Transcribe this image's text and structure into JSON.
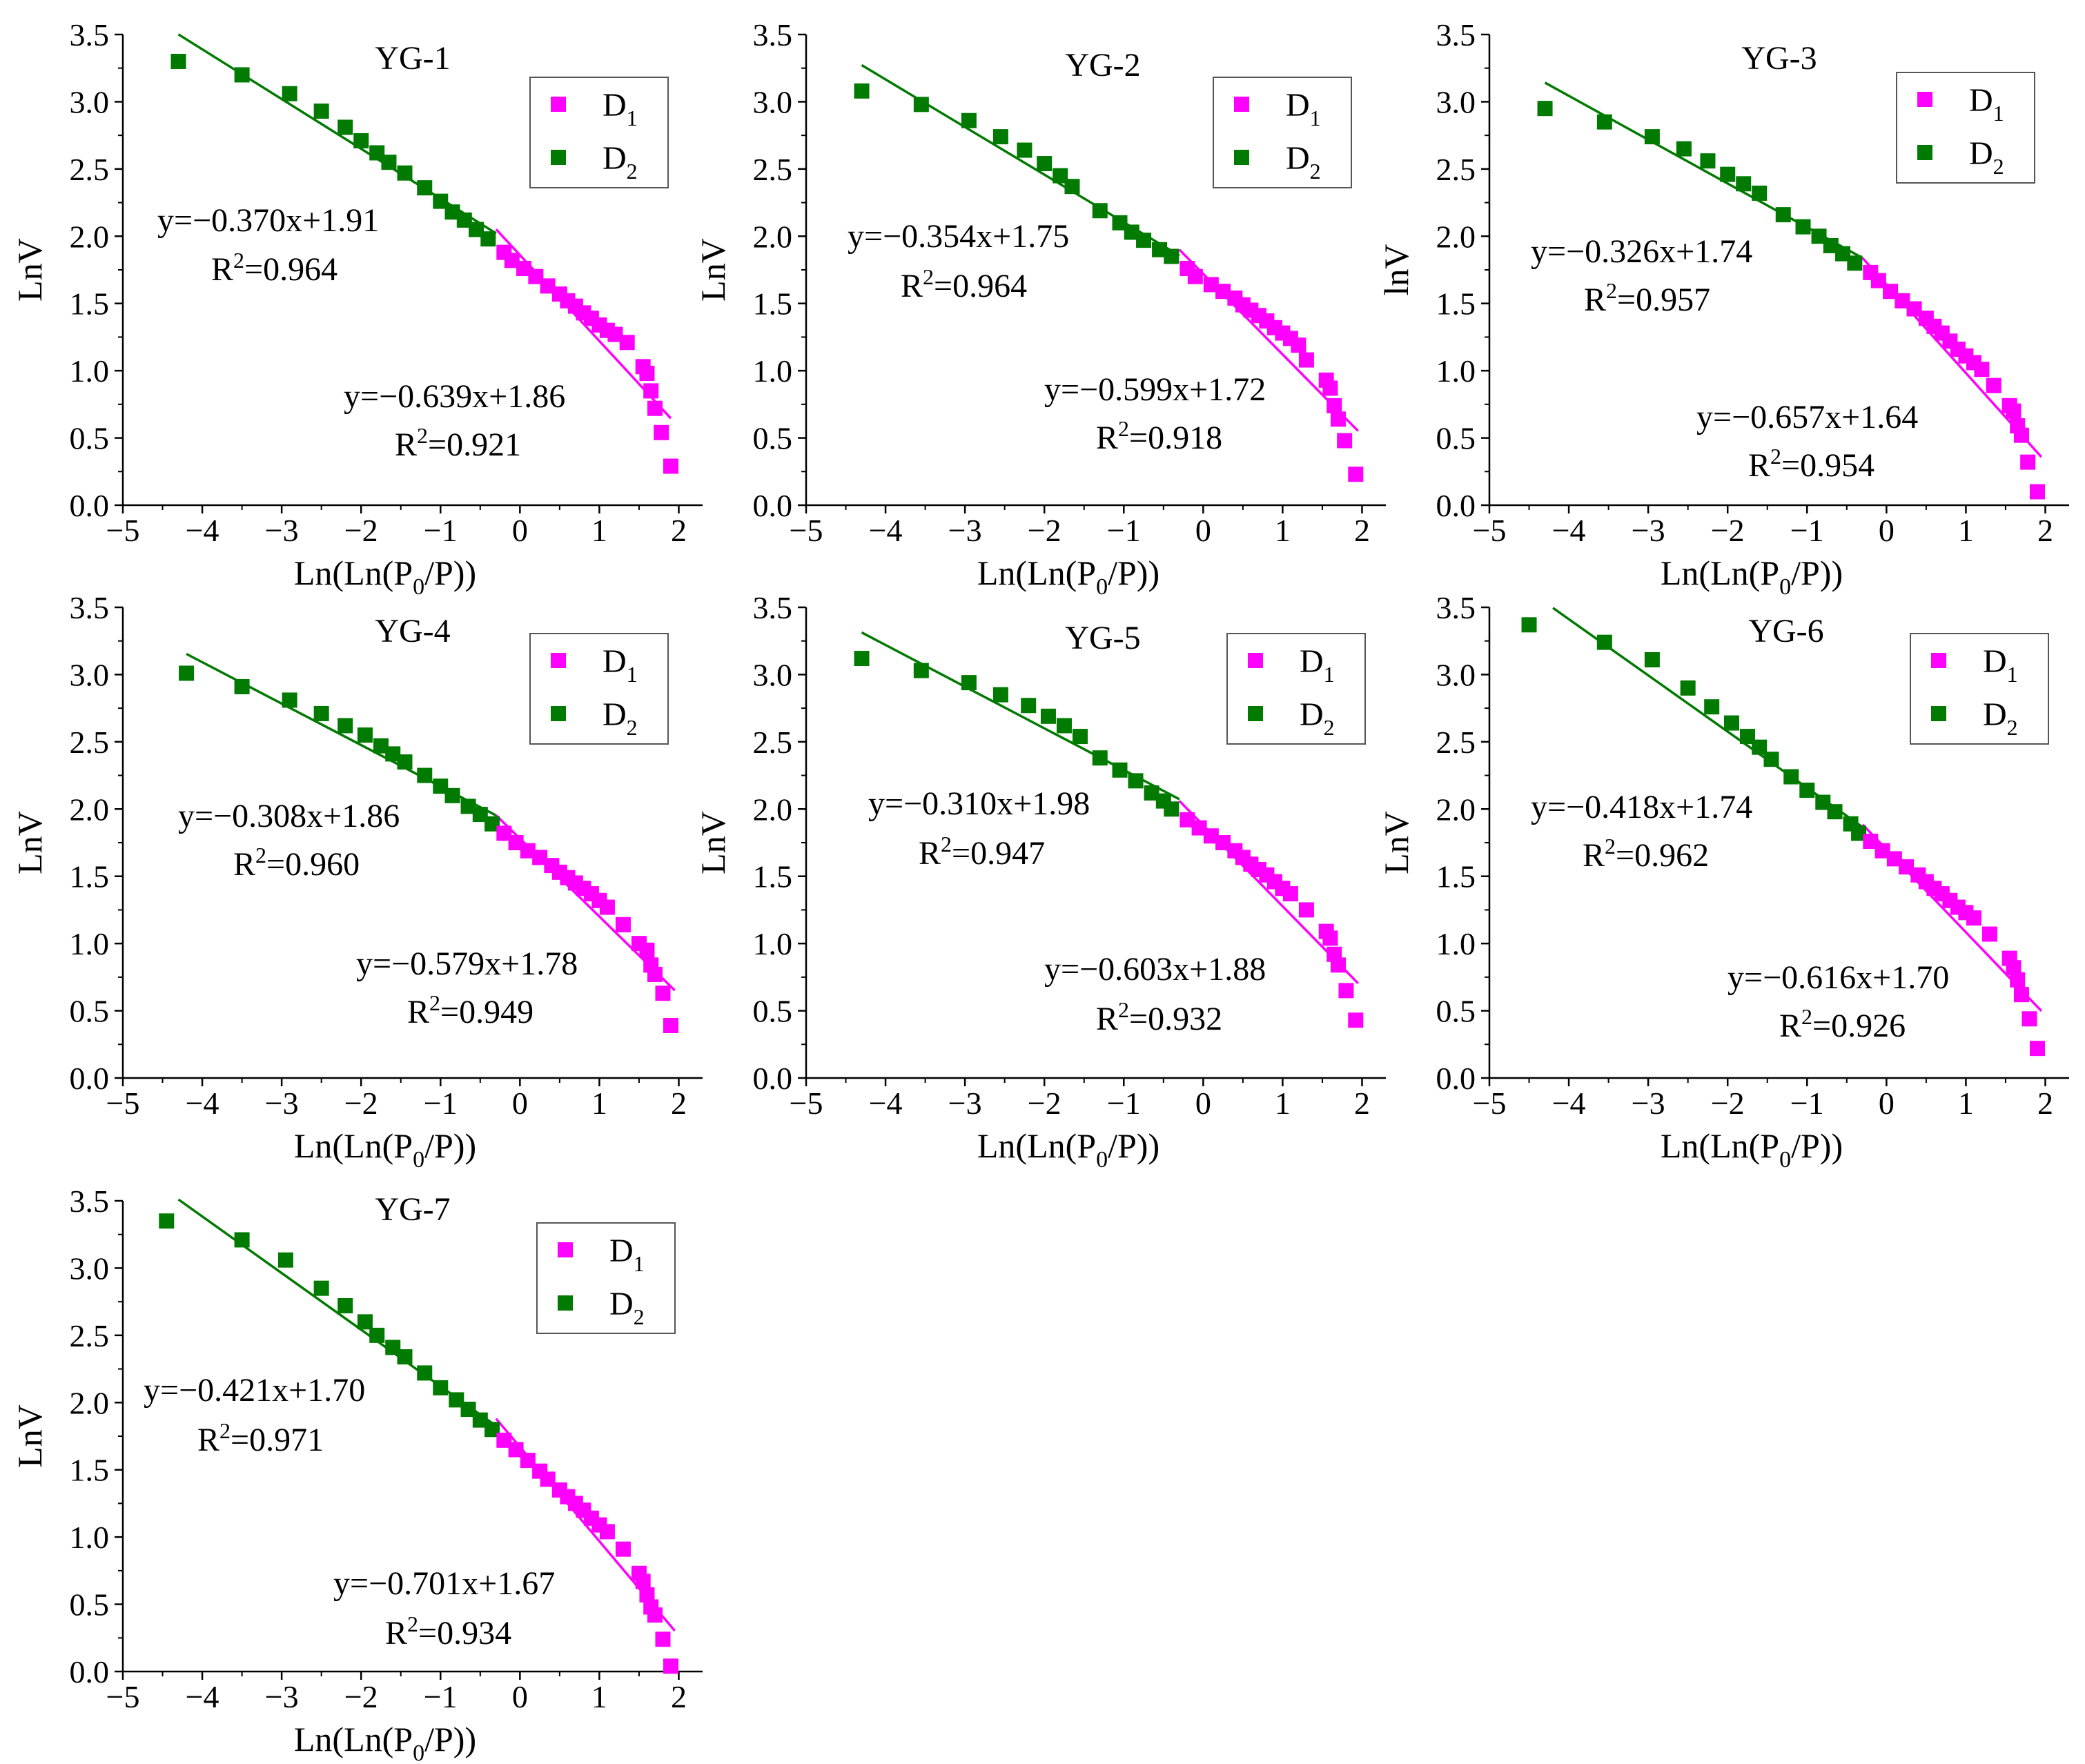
{
  "figure": {
    "description_free": true,
    "colors": {
      "D1": "#ff00ff",
      "D2": "#007a00",
      "axis": "#000000",
      "legend_border": "#555555"
    },
    "common_axes": {
      "xlabel_main": "Ln(Ln(P",
      "xlabel_sub": "0",
      "xlabel_tail": "/P))",
      "xlim": [
        -5,
        2.3
      ],
      "ylim": [
        0,
        3.5
      ],
      "xticks": [
        "−5",
        "−4",
        "−3",
        "−2",
        "−1",
        "0",
        "1",
        "2"
      ],
      "xtick_values": [
        -5,
        -4,
        -3,
        -2,
        -1,
        0,
        1,
        2
      ],
      "yticks": [
        "0.0",
        "0.5",
        "1.0",
        "1.5",
        "2.0",
        "2.5",
        "3.0",
        "3.5"
      ],
      "ytick_values": [
        0,
        0.5,
        1.0,
        1.5,
        2.0,
        2.5,
        3.0,
        3.5
      ]
    },
    "legend_labels": {
      "D1_main": "D",
      "D1_sub": "1",
      "D2_main": "D",
      "D2_sub": "2"
    }
  },
  "chart_data": [
    {
      "type": "scatter",
      "title": "YG-1",
      "ylabel": "LnV",
      "d2": {
        "slope": -0.37,
        "intercept": 1.91,
        "x_range": [
          -4.3,
          -0.3
        ],
        "eq": "y=−0.370x+1.91",
        "r2": "=0.964",
        "points": [
          [
            -4.3,
            3.3
          ],
          [
            -3.5,
            3.2
          ],
          [
            -2.9,
            3.06
          ],
          [
            -2.5,
            2.93
          ],
          [
            -2.2,
            2.81
          ],
          [
            -2.0,
            2.71
          ],
          [
            -1.8,
            2.62
          ],
          [
            -1.65,
            2.55
          ],
          [
            -1.45,
            2.47
          ],
          [
            -1.2,
            2.36
          ],
          [
            -1.0,
            2.26
          ],
          [
            -0.85,
            2.18
          ],
          [
            -0.7,
            2.12
          ],
          [
            -0.55,
            2.05
          ],
          [
            -0.4,
            1.98
          ]
        ]
      },
      "d1": {
        "slope": -0.639,
        "intercept": 1.86,
        "x_range": [
          -0.3,
          1.9
        ],
        "eq": "y=−0.639x+1.86",
        "r2": "=0.921",
        "points": [
          [
            -0.2,
            1.88
          ],
          [
            -0.1,
            1.82
          ],
          [
            0.05,
            1.76
          ],
          [
            0.2,
            1.7
          ],
          [
            0.35,
            1.63
          ],
          [
            0.5,
            1.57
          ],
          [
            0.6,
            1.52
          ],
          [
            0.7,
            1.48
          ],
          [
            0.8,
            1.43
          ],
          [
            0.9,
            1.39
          ],
          [
            1.0,
            1.34
          ],
          [
            1.1,
            1.3
          ],
          [
            1.2,
            1.27
          ],
          [
            1.35,
            1.21
          ],
          [
            1.55,
            1.03
          ],
          [
            1.6,
            0.98
          ],
          [
            1.65,
            0.85
          ],
          [
            1.7,
            0.72
          ],
          [
            1.78,
            0.54
          ],
          [
            1.9,
            0.29
          ]
        ]
      }
    },
    {
      "type": "scatter",
      "title": "YG-2",
      "ylabel": "LnV",
      "d2": {
        "slope": -0.354,
        "intercept": 1.75,
        "x_range": [
          -4.3,
          -0.3
        ],
        "eq": "y=−0.354x+1.75",
        "r2": "=0.964",
        "points": [
          [
            -4.3,
            3.08
          ],
          [
            -3.55,
            2.98
          ],
          [
            -2.95,
            2.86
          ],
          [
            -2.55,
            2.74
          ],
          [
            -2.25,
            2.64
          ],
          [
            -2.0,
            2.54
          ],
          [
            -1.8,
            2.45
          ],
          [
            -1.65,
            2.37
          ],
          [
            -1.3,
            2.19
          ],
          [
            -1.05,
            2.1
          ],
          [
            -0.9,
            2.03
          ],
          [
            -0.75,
            1.97
          ],
          [
            -0.55,
            1.9
          ],
          [
            -0.4,
            1.85
          ]
        ]
      },
      "d1": {
        "slope": -0.599,
        "intercept": 1.72,
        "x_range": [
          -0.3,
          1.95
        ],
        "eq": "y=−0.599x+1.72",
        "r2": "=0.918",
        "points": [
          [
            -0.2,
            1.76
          ],
          [
            -0.1,
            1.7
          ],
          [
            0.1,
            1.64
          ],
          [
            0.25,
            1.59
          ],
          [
            0.4,
            1.54
          ],
          [
            0.5,
            1.49
          ],
          [
            0.6,
            1.45
          ],
          [
            0.7,
            1.41
          ],
          [
            0.8,
            1.37
          ],
          [
            0.9,
            1.32
          ],
          [
            1.0,
            1.28
          ],
          [
            1.1,
            1.24
          ],
          [
            1.2,
            1.19
          ],
          [
            1.3,
            1.08
          ],
          [
            1.55,
            0.93
          ],
          [
            1.6,
            0.87
          ],
          [
            1.65,
            0.74
          ],
          [
            1.7,
            0.64
          ],
          [
            1.78,
            0.48
          ],
          [
            1.92,
            0.23
          ]
        ]
      }
    },
    {
      "type": "scatter",
      "title": "YG-3",
      "ylabel": "lnV",
      "d2": {
        "slope": -0.326,
        "intercept": 1.74,
        "x_range": [
          -4.3,
          -0.3
        ],
        "eq": "y=−0.326x+1.74",
        "r2": "=0.957",
        "points": [
          [
            -4.3,
            2.95
          ],
          [
            -3.55,
            2.85
          ],
          [
            -2.95,
            2.74
          ],
          [
            -2.55,
            2.65
          ],
          [
            -2.25,
            2.56
          ],
          [
            -2.0,
            2.46
          ],
          [
            -1.8,
            2.39
          ],
          [
            -1.6,
            2.32
          ],
          [
            -1.3,
            2.16
          ],
          [
            -1.05,
            2.07
          ],
          [
            -0.85,
            2.0
          ],
          [
            -0.7,
            1.93
          ],
          [
            -0.55,
            1.87
          ],
          [
            -0.4,
            1.8
          ]
        ]
      },
      "d1": {
        "slope": -0.657,
        "intercept": 1.64,
        "x_range": [
          -0.3,
          1.95
        ],
        "eq": "y=−0.657x+1.64",
        "r2": "=0.954",
        "points": [
          [
            -0.2,
            1.73
          ],
          [
            -0.1,
            1.67
          ],
          [
            0.05,
            1.59
          ],
          [
            0.2,
            1.52
          ],
          [
            0.35,
            1.46
          ],
          [
            0.5,
            1.39
          ],
          [
            0.6,
            1.33
          ],
          [
            0.7,
            1.28
          ],
          [
            0.8,
            1.22
          ],
          [
            0.9,
            1.16
          ],
          [
            1.0,
            1.11
          ],
          [
            1.1,
            1.06
          ],
          [
            1.2,
            1.01
          ],
          [
            1.35,
            0.89
          ],
          [
            1.55,
            0.74
          ],
          [
            1.6,
            0.7
          ],
          [
            1.65,
            0.59
          ],
          [
            1.7,
            0.52
          ],
          [
            1.78,
            0.32
          ],
          [
            1.9,
            0.1
          ]
        ]
      }
    },
    {
      "type": "scatter",
      "title": "YG-4",
      "ylabel": "LnV",
      "d2": {
        "slope": -0.308,
        "intercept": 1.86,
        "x_range": [
          -4.2,
          -0.3
        ],
        "eq": "y=−0.308x+1.86",
        "r2": "=0.960",
        "points": [
          [
            -4.2,
            3.01
          ],
          [
            -3.5,
            2.91
          ],
          [
            -2.9,
            2.81
          ],
          [
            -2.5,
            2.71
          ],
          [
            -2.2,
            2.62
          ],
          [
            -1.95,
            2.55
          ],
          [
            -1.75,
            2.47
          ],
          [
            -1.6,
            2.41
          ],
          [
            -1.45,
            2.35
          ],
          [
            -1.2,
            2.25
          ],
          [
            -1.0,
            2.17
          ],
          [
            -0.85,
            2.1
          ],
          [
            -0.65,
            2.02
          ],
          [
            -0.5,
            1.96
          ],
          [
            -0.35,
            1.89
          ]
        ]
      },
      "d1": {
        "slope": -0.579,
        "intercept": 1.78,
        "x_range": [
          -0.3,
          1.95
        ],
        "eq": "y=−0.579x+1.78",
        "r2": "=0.949",
        "points": [
          [
            -0.2,
            1.82
          ],
          [
            -0.05,
            1.75
          ],
          [
            0.1,
            1.69
          ],
          [
            0.25,
            1.64
          ],
          [
            0.4,
            1.58
          ],
          [
            0.5,
            1.53
          ],
          [
            0.6,
            1.49
          ],
          [
            0.7,
            1.45
          ],
          [
            0.8,
            1.41
          ],
          [
            0.9,
            1.37
          ],
          [
            1.0,
            1.32
          ],
          [
            1.1,
            1.27
          ],
          [
            1.3,
            1.14
          ],
          [
            1.5,
            1.0
          ],
          [
            1.6,
            0.95
          ],
          [
            1.65,
            0.84
          ],
          [
            1.7,
            0.77
          ],
          [
            1.8,
            0.63
          ],
          [
            1.9,
            0.39
          ]
        ]
      }
    },
    {
      "type": "scatter",
      "title": "YG-5",
      "ylabel": "LnV",
      "d2": {
        "slope": -0.31,
        "intercept": 1.98,
        "x_range": [
          -4.3,
          -0.3
        ],
        "eq": "y=−0.310x+1.98",
        "r2": "=0.947",
        "points": [
          [
            -4.3,
            3.12
          ],
          [
            -3.55,
            3.03
          ],
          [
            -2.95,
            2.94
          ],
          [
            -2.55,
            2.85
          ],
          [
            -2.2,
            2.77
          ],
          [
            -1.95,
            2.69
          ],
          [
            -1.75,
            2.62
          ],
          [
            -1.55,
            2.54
          ],
          [
            -1.3,
            2.38
          ],
          [
            -1.05,
            2.29
          ],
          [
            -0.85,
            2.21
          ],
          [
            -0.65,
            2.12
          ],
          [
            -0.5,
            2.06
          ],
          [
            -0.4,
            2.0
          ]
        ]
      },
      "d1": {
        "slope": -0.603,
        "intercept": 1.88,
        "x_range": [
          -0.3,
          1.95
        ],
        "eq": "y=−0.603x+1.88",
        "r2": "=0.932",
        "points": [
          [
            -0.2,
            1.92
          ],
          [
            -0.05,
            1.86
          ],
          [
            0.1,
            1.8
          ],
          [
            0.25,
            1.75
          ],
          [
            0.4,
            1.69
          ],
          [
            0.5,
            1.64
          ],
          [
            0.6,
            1.59
          ],
          [
            0.7,
            1.55
          ],
          [
            0.8,
            1.51
          ],
          [
            0.9,
            1.46
          ],
          [
            1.0,
            1.41
          ],
          [
            1.1,
            1.37
          ],
          [
            1.3,
            1.25
          ],
          [
            1.55,
            1.09
          ],
          [
            1.6,
            1.04
          ],
          [
            1.65,
            0.92
          ],
          [
            1.7,
            0.84
          ],
          [
            1.8,
            0.65
          ],
          [
            1.92,
            0.43
          ]
        ]
      }
    },
    {
      "type": "scatter",
      "title": "YG-6",
      "ylabel": "LnV",
      "d2": {
        "slope": -0.418,
        "intercept": 1.74,
        "x_range": [
          -4.2,
          -0.3
        ],
        "eq": "y=−0.418x+1.74",
        "r2": "=0.962",
        "points": [
          [
            -4.5,
            3.37
          ],
          [
            -3.55,
            3.24
          ],
          [
            -2.95,
            3.11
          ],
          [
            -2.5,
            2.9
          ],
          [
            -2.2,
            2.76
          ],
          [
            -1.95,
            2.64
          ],
          [
            -1.75,
            2.54
          ],
          [
            -1.6,
            2.46
          ],
          [
            -1.45,
            2.37
          ],
          [
            -1.2,
            2.24
          ],
          [
            -1.0,
            2.14
          ],
          [
            -0.8,
            2.05
          ],
          [
            -0.65,
            1.98
          ],
          [
            -0.45,
            1.89
          ],
          [
            -0.35,
            1.82
          ]
        ]
      },
      "d1": {
        "slope": -0.616,
        "intercept": 1.7,
        "x_range": [
          -0.3,
          1.95
        ],
        "eq": "y=−0.616x+1.70",
        "r2": "=0.926",
        "points": [
          [
            -0.2,
            1.76
          ],
          [
            -0.05,
            1.69
          ],
          [
            0.1,
            1.63
          ],
          [
            0.25,
            1.57
          ],
          [
            0.4,
            1.51
          ],
          [
            0.5,
            1.46
          ],
          [
            0.6,
            1.41
          ],
          [
            0.7,
            1.37
          ],
          [
            0.8,
            1.32
          ],
          [
            0.9,
            1.27
          ],
          [
            1.0,
            1.23
          ],
          [
            1.1,
            1.19
          ],
          [
            1.3,
            1.07
          ],
          [
            1.55,
            0.89
          ],
          [
            1.6,
            0.82
          ],
          [
            1.65,
            0.73
          ],
          [
            1.7,
            0.62
          ],
          [
            1.8,
            0.44
          ],
          [
            1.9,
            0.22
          ]
        ]
      }
    },
    {
      "type": "scatter",
      "title": "YG-7",
      "ylabel": "LnV",
      "d2": {
        "slope": -0.421,
        "intercept": 1.7,
        "x_range": [
          -4.3,
          -0.3
        ],
        "eq": "y=−0.421x+1.70",
        "r2": "=0.971",
        "points": [
          [
            -4.45,
            3.35
          ],
          [
            -3.5,
            3.21
          ],
          [
            -2.95,
            3.06
          ],
          [
            -2.5,
            2.85
          ],
          [
            -2.2,
            2.72
          ],
          [
            -1.95,
            2.6
          ],
          [
            -1.8,
            2.5
          ],
          [
            -1.6,
            2.41
          ],
          [
            -1.45,
            2.34
          ],
          [
            -1.2,
            2.22
          ],
          [
            -1.0,
            2.11
          ],
          [
            -0.8,
            2.02
          ],
          [
            -0.65,
            1.95
          ],
          [
            -0.5,
            1.87
          ],
          [
            -0.35,
            1.8
          ]
        ]
      },
      "d1": {
        "slope": -0.701,
        "intercept": 1.67,
        "x_range": [
          -0.3,
          1.95
        ],
        "eq": "y=−0.701x+1.67",
        "r2": "=0.934",
        "points": [
          [
            -0.2,
            1.72
          ],
          [
            -0.05,
            1.65
          ],
          [
            0.1,
            1.57
          ],
          [
            0.25,
            1.49
          ],
          [
            0.35,
            1.43
          ],
          [
            0.5,
            1.35
          ],
          [
            0.6,
            1.3
          ],
          [
            0.7,
            1.25
          ],
          [
            0.8,
            1.2
          ],
          [
            0.9,
            1.14
          ],
          [
            1.0,
            1.09
          ],
          [
            1.1,
            1.04
          ],
          [
            1.3,
            0.91
          ],
          [
            1.5,
            0.73
          ],
          [
            1.55,
            0.67
          ],
          [
            1.6,
            0.57
          ],
          [
            1.65,
            0.48
          ],
          [
            1.7,
            0.42
          ],
          [
            1.8,
            0.24
          ],
          [
            1.9,
            0.04
          ]
        ]
      }
    }
  ]
}
